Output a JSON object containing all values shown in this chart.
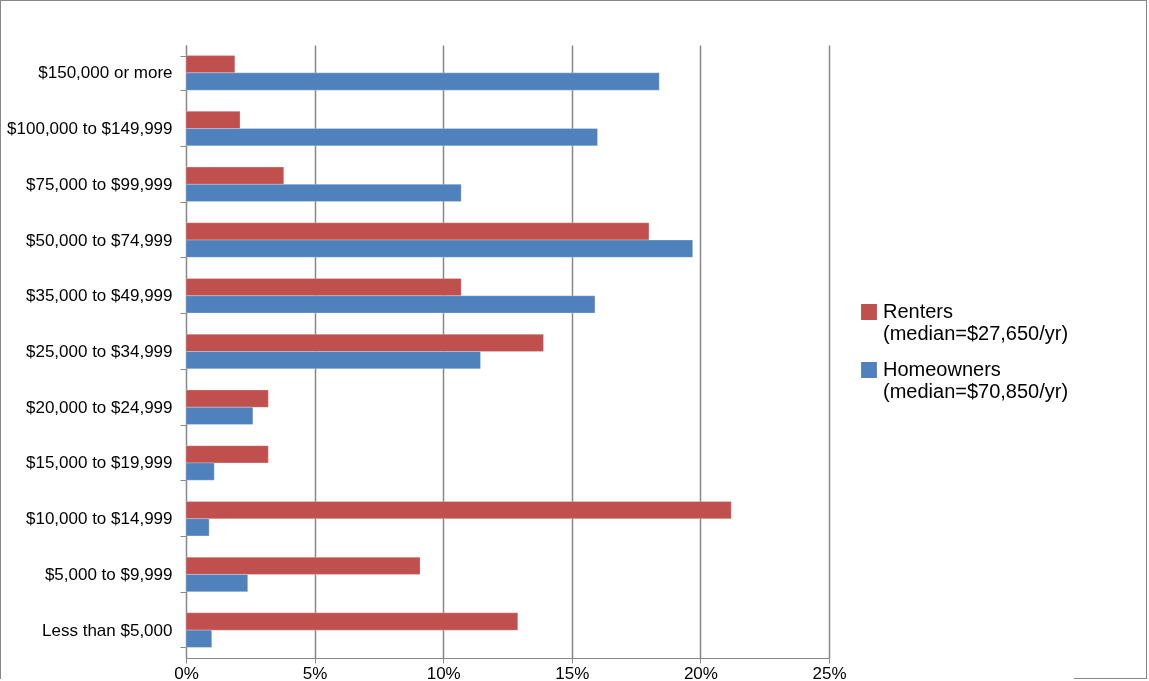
{
  "chart_data": {
    "type": "bar",
    "orientation": "horizontal",
    "categories": [
      "$150,000 or more",
      "$100,000 to $149,999",
      "$75,000 to $99,999",
      "$50,000 to $74,999",
      "$35,000 to $49,999",
      "$25,000 to $34,999",
      "$20,000 to $24,999",
      "$15,000 to $19,999",
      "$10,000 to $14,999",
      "$5,000 to $9,999",
      "Less than $5,000"
    ],
    "series": [
      {
        "name": "Renters (median=$27,650/yr)",
        "color": "#c0504d",
        "values": [
          1.9,
          2.1,
          3.8,
          18.0,
          10.7,
          13.9,
          3.2,
          3.2,
          21.2,
          9.1,
          12.9
        ]
      },
      {
        "name": "Homeowners (median=$70,850/yr)",
        "color": "#4f81bd",
        "values": [
          18.4,
          16.0,
          10.7,
          19.7,
          15.9,
          11.45,
          2.6,
          1.1,
          0.9,
          2.4,
          1.0
        ]
      }
    ],
    "xlim": [
      0,
      25
    ],
    "xticks": [
      {
        "value": 0,
        "label": "0%"
      },
      {
        "value": 5,
        "label": "5%"
      },
      {
        "value": 10,
        "label": "10%"
      },
      {
        "value": 15,
        "label": "15%"
      },
      {
        "value": 20,
        "label": "20%"
      },
      {
        "value": 25,
        "label": "25%"
      }
    ],
    "grid": "x",
    "legend": "right"
  }
}
